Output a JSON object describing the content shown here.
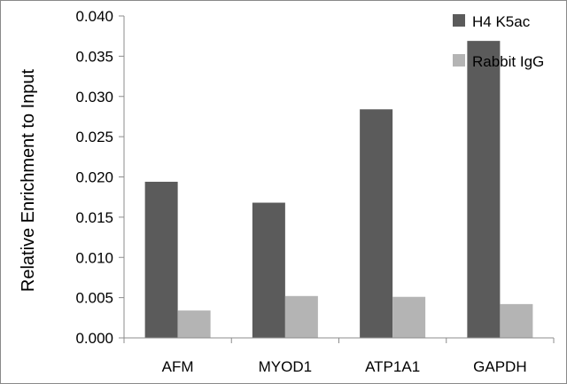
{
  "chart_data": {
    "type": "bar",
    "title": "",
    "xlabel": "",
    "ylabel": "Relative Enrichment to Input",
    "categories": [
      "AFM",
      "MYOD1",
      "ATP1A1",
      "GAPDH"
    ],
    "series": [
      {
        "name": "H4 K5ac",
        "color": "#5b5b5b",
        "values": [
          0.0194,
          0.0168,
          0.0284,
          0.0369
        ]
      },
      {
        "name": "Rabbit IgG",
        "color": "#b4b4b4",
        "values": [
          0.0034,
          0.0052,
          0.0051,
          0.0042
        ]
      }
    ],
    "ylim": [
      0,
      0.04
    ],
    "yticks": [
      "0.000",
      "0.005",
      "0.010",
      "0.015",
      "0.020",
      "0.025",
      "0.030",
      "0.035",
      "0.040"
    ],
    "grid": false,
    "legend_position": "top-right"
  }
}
